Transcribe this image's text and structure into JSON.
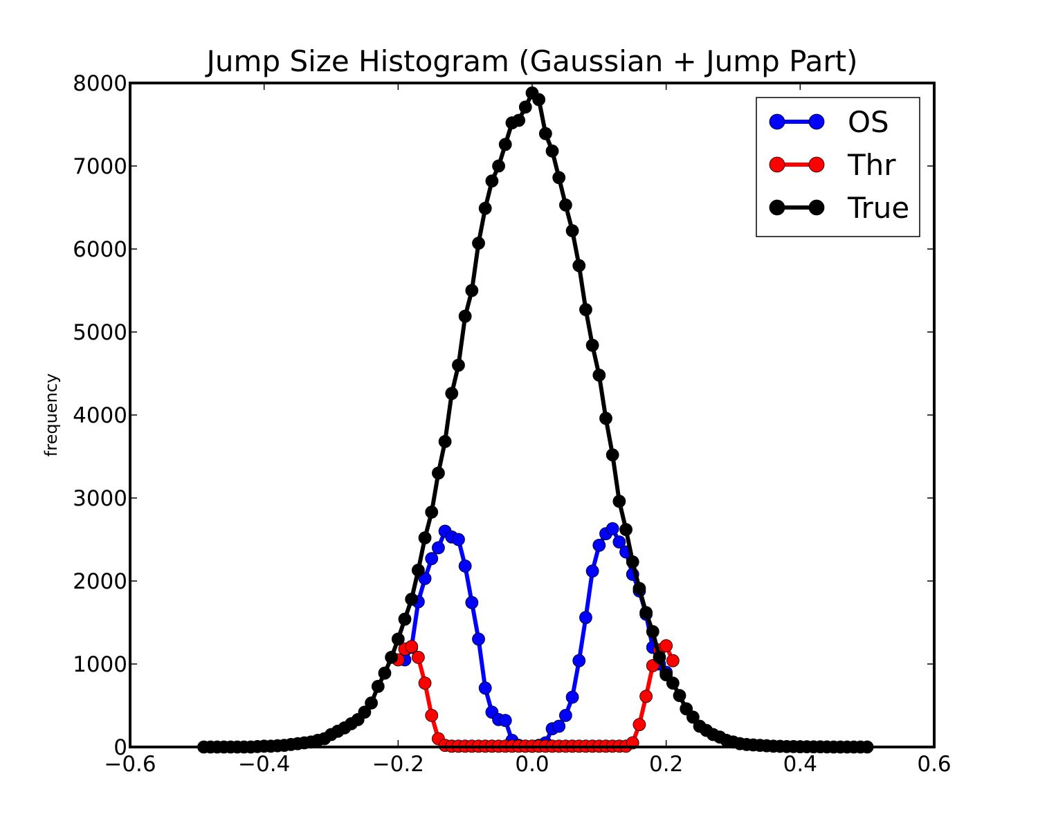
{
  "chart_data": {
    "type": "line",
    "title": "Jump Size Histogram (Gaussian + Jump Part)",
    "xlabel": "",
    "ylabel": "frequency",
    "xlim": [
      -0.6,
      0.6
    ],
    "ylim": [
      0,
      8000
    ],
    "xticks": [
      "−0.6",
      "−0.4",
      "−0.2",
      "0.0",
      "0.2",
      "0.4",
      "0.6"
    ],
    "yticks": [
      "0",
      "1000",
      "2000",
      "3000",
      "4000",
      "5000",
      "6000",
      "7000",
      "8000"
    ],
    "grid": false,
    "legend_position": "top-right",
    "series": [
      {
        "name": "OS",
        "color": "#0000ff",
        "x": [
          -0.19,
          -0.18,
          -0.17,
          -0.16,
          -0.15,
          -0.14,
          -0.13,
          -0.12,
          -0.11,
          -0.1,
          -0.09,
          -0.08,
          -0.07,
          -0.06,
          -0.05,
          -0.04,
          -0.03,
          -0.02,
          -0.01,
          0.0,
          0.01,
          0.02,
          0.03,
          0.04,
          0.05,
          0.06,
          0.07,
          0.08,
          0.09,
          0.1,
          0.11,
          0.12,
          0.13,
          0.14,
          0.15,
          0.16,
          0.17,
          0.18,
          0.19,
          0.2
        ],
        "values": [
          1050,
          1200,
          1750,
          2030,
          2270,
          2400,
          2600,
          2530,
          2500,
          2180,
          1740,
          1300,
          710,
          420,
          330,
          320,
          80,
          20,
          10,
          10,
          20,
          50,
          220,
          250,
          380,
          600,
          1040,
          1560,
          2120,
          2430,
          2570,
          2630,
          2470,
          2350,
          2080,
          1880,
          1600,
          1200,
          1000,
          900
        ]
      },
      {
        "name": "Thr",
        "color": "#ff0000",
        "x": [
          -0.2,
          -0.19,
          -0.18,
          -0.17,
          -0.16,
          -0.15,
          -0.14,
          -0.13,
          -0.12,
          -0.11,
          -0.1,
          -0.09,
          -0.08,
          -0.07,
          -0.06,
          -0.05,
          -0.04,
          -0.03,
          -0.02,
          -0.01,
          0.0,
          0.01,
          0.02,
          0.03,
          0.04,
          0.05,
          0.06,
          0.07,
          0.08,
          0.09,
          0.1,
          0.11,
          0.12,
          0.13,
          0.14,
          0.15,
          0.16,
          0.17,
          0.18,
          0.19,
          0.2,
          0.21
        ],
        "values": [
          1050,
          1180,
          1210,
          1080,
          770,
          380,
          100,
          20,
          10,
          10,
          10,
          10,
          10,
          10,
          10,
          10,
          10,
          10,
          10,
          10,
          10,
          10,
          10,
          10,
          10,
          10,
          10,
          10,
          10,
          10,
          10,
          10,
          10,
          10,
          10,
          50,
          270,
          610,
          980,
          1170,
          1220,
          1040
        ]
      },
      {
        "name": "True",
        "color": "#000000",
        "x": [
          -0.49,
          -0.48,
          -0.47,
          -0.46,
          -0.45,
          -0.44,
          -0.43,
          -0.42,
          -0.41,
          -0.4,
          -0.39,
          -0.38,
          -0.37,
          -0.36,
          -0.35,
          -0.34,
          -0.33,
          -0.32,
          -0.31,
          -0.3,
          -0.29,
          -0.28,
          -0.27,
          -0.26,
          -0.25,
          -0.24,
          -0.23,
          -0.22,
          -0.21,
          -0.2,
          -0.19,
          -0.18,
          -0.17,
          -0.16,
          -0.15,
          -0.14,
          -0.13,
          -0.12,
          -0.11,
          -0.1,
          -0.09,
          -0.08,
          -0.07,
          -0.06,
          -0.05,
          -0.04,
          -0.03,
          -0.02,
          -0.01,
          0.0,
          0.01,
          0.02,
          0.03,
          0.04,
          0.05,
          0.06,
          0.07,
          0.08,
          0.09,
          0.1,
          0.11,
          0.12,
          0.13,
          0.14,
          0.15,
          0.16,
          0.17,
          0.18,
          0.19,
          0.2,
          0.21,
          0.22,
          0.23,
          0.24,
          0.25,
          0.26,
          0.27,
          0.28,
          0.29,
          0.3,
          0.31,
          0.32,
          0.33,
          0.34,
          0.35,
          0.36,
          0.37,
          0.38,
          0.39,
          0.4,
          0.41,
          0.42,
          0.43,
          0.44,
          0.45,
          0.46,
          0.47,
          0.48,
          0.49,
          0.5
        ],
        "values": [
          0,
          0,
          0,
          0,
          0,
          0,
          0,
          0,
          5,
          10,
          10,
          15,
          20,
          30,
          40,
          50,
          60,
          80,
          100,
          150,
          190,
          230,
          280,
          330,
          420,
          530,
          730,
          890,
          1080,
          1300,
          1540,
          1780,
          2130,
          2520,
          2830,
          3300,
          3680,
          4260,
          4600,
          5190,
          5500,
          6070,
          6490,
          6820,
          7000,
          7260,
          7520,
          7550,
          7710,
          7880,
          7800,
          7390,
          7180,
          6860,
          6530,
          6220,
          5800,
          5270,
          4840,
          4480,
          3960,
          3520,
          2960,
          2620,
          2230,
          1910,
          1620,
          1390,
          1080,
          870,
          770,
          620,
          460,
          360,
          250,
          200,
          150,
          120,
          80,
          60,
          40,
          30,
          25,
          20,
          15,
          10,
          8,
          5,
          5,
          3,
          3,
          2,
          2,
          1,
          0,
          0,
          0,
          0,
          0,
          0
        ]
      }
    ]
  }
}
